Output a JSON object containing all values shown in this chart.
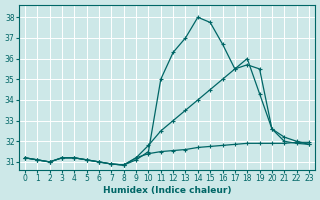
{
  "xlabel": "Humidex (Indice chaleur)",
  "bg_color": "#cde8e8",
  "grid_color": "#b8d8d8",
  "line_color": "#006666",
  "xlim": [
    -0.5,
    23.5
  ],
  "ylim": [
    30.6,
    38.6
  ],
  "xticks": [
    0,
    1,
    2,
    3,
    4,
    5,
    6,
    7,
    8,
    9,
    10,
    11,
    12,
    13,
    14,
    15,
    16,
    17,
    18,
    19,
    20,
    21,
    22,
    23
  ],
  "yticks": [
    31,
    32,
    33,
    34,
    35,
    36,
    37,
    38
  ],
  "series1_x": [
    0,
    1,
    2,
    3,
    4,
    5,
    6,
    7,
    8,
    9,
    10,
    11,
    12,
    13,
    14,
    15,
    16,
    17,
    18,
    19,
    20,
    21,
    22,
    23
  ],
  "series1_y": [
    31.2,
    31.1,
    31.0,
    31.2,
    31.2,
    31.1,
    31.0,
    30.9,
    30.85,
    31.1,
    31.5,
    35.0,
    36.3,
    37.0,
    38.0,
    37.75,
    36.7,
    35.5,
    35.7,
    35.5,
    32.6,
    32.0,
    31.9,
    31.85
  ],
  "series2_x": [
    0,
    1,
    2,
    3,
    4,
    5,
    6,
    7,
    8,
    9,
    10,
    11,
    12,
    13,
    14,
    15,
    16,
    17,
    18,
    19,
    20,
    21,
    22,
    23
  ],
  "series2_y": [
    31.2,
    31.1,
    31.0,
    31.2,
    31.2,
    31.1,
    31.0,
    30.9,
    30.85,
    31.2,
    31.8,
    32.5,
    33.0,
    33.5,
    34.0,
    34.5,
    35.0,
    35.5,
    36.0,
    34.3,
    32.6,
    32.2,
    32.0,
    31.85
  ],
  "series3_x": [
    0,
    1,
    2,
    3,
    4,
    5,
    6,
    7,
    8,
    9,
    10,
    11,
    12,
    13,
    14,
    15,
    16,
    17,
    18,
    19,
    20,
    21,
    22,
    23
  ],
  "series3_y": [
    31.2,
    31.1,
    31.0,
    31.2,
    31.2,
    31.1,
    31.0,
    30.9,
    30.85,
    31.2,
    31.4,
    31.5,
    31.55,
    31.6,
    31.7,
    31.75,
    31.8,
    31.85,
    31.9,
    31.9,
    31.9,
    31.9,
    31.95,
    31.95
  ]
}
